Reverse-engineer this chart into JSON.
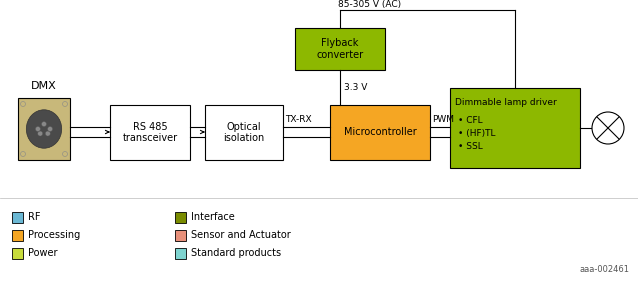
{
  "bg_color": "#ffffff",
  "ac_label": "85-305 V (AC)",
  "v33_label": "3.3 V",
  "pwm_label": "PWM",
  "txrx_label": "TX-RX",
  "ref_label": "aaa-002461",
  "dmx_label": "DMX",
  "colors": {
    "rf": "#6bb8d4",
    "processing": "#f5a623",
    "power": "#c8dc3c",
    "interface": "#7a8c00",
    "sensor_actuator": "#e8907a",
    "standard_products": "#7ed4d0",
    "white_box": "#ffffff",
    "outline": "#000000",
    "flyback_fill": "#8db800",
    "microcontroller_fill": "#f5a623",
    "dimmable_fill": "#8db800",
    "dmx_connector_fill": "#c8b87a"
  },
  "legend_items_col1": [
    {
      "label": "RF",
      "color": "#6bb8d4"
    },
    {
      "label": "Processing",
      "color": "#f5a623"
    },
    {
      "label": "Power",
      "color": "#c8dc3c"
    }
  ],
  "legend_items_col2": [
    {
      "label": "Interface",
      "color": "#7a8c00"
    },
    {
      "label": "Sensor and Actuator",
      "color": "#e8907a"
    },
    {
      "label": "Standard products",
      "color": "#7ed4d0"
    }
  ]
}
